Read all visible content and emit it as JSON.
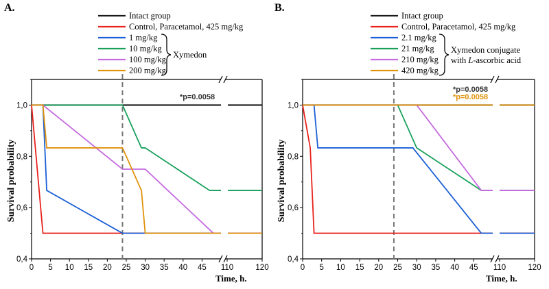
{
  "chart_data": [
    {
      "panel": "A.",
      "type": "line",
      "ylabel": "Survival probability",
      "xlabel": "Time, h.",
      "ylim": [
        0.4,
        1.1
      ],
      "yticks": [
        "0,4",
        "0,6",
        "0,8",
        "1,0"
      ],
      "xticks_left": [
        "0",
        "5",
        "10",
        "15",
        "20",
        "25",
        "30",
        "35",
        "40",
        "45"
      ],
      "xticks_right": [
        "110",
        "120"
      ],
      "axis_break": true,
      "vline_x": 24,
      "grid": false,
      "legend_group_label": "Xymedon",
      "pvalue_label": "*p=0.0058",
      "series": [
        {
          "name": "Intact group",
          "color": "#1a1a1a",
          "points": [
            [
              0,
              1
            ],
            [
              50,
              1
            ],
            [
              120,
              1
            ]
          ]
        },
        {
          "name": "Control, Paracetamol, 425 mg/kg",
          "color": "#e8221c",
          "points": [
            [
              0,
              1
            ],
            [
              3,
              0.5
            ],
            [
              50,
              0.5
            ],
            [
              120,
              0.5
            ]
          ]
        },
        {
          "name": "1 mg/kg",
          "color": "#1b5fd6",
          "points": [
            [
              0,
              1
            ],
            [
              3,
              1
            ],
            [
              4,
              0.667
            ],
            [
              24,
              0.5
            ],
            [
              50,
              0.5
            ],
            [
              120,
              0.5
            ]
          ]
        },
        {
          "name": "10 mg/kg",
          "color": "#17a05a",
          "points": [
            [
              0,
              1
            ],
            [
              24,
              1
            ],
            [
              29,
              0.833
            ],
            [
              30,
              0.833
            ],
            [
              47,
              0.667
            ],
            [
              50,
              0.667
            ],
            [
              120,
              0.667
            ]
          ]
        },
        {
          "name": "100 mg/kg",
          "color": "#c56ae0",
          "points": [
            [
              0,
              1
            ],
            [
              3,
              1
            ],
            [
              24,
              0.75
            ],
            [
              30,
              0.75
            ],
            [
              48,
              0.5
            ],
            [
              50,
              0.5
            ],
            [
              120,
              0.5
            ]
          ]
        },
        {
          "name": "200 mg/kg",
          "color": "#e0920a",
          "points": [
            [
              0,
              1
            ],
            [
              3,
              1
            ],
            [
              4,
              0.833
            ],
            [
              24,
              0.833
            ],
            [
              29,
              0.667
            ],
            [
              30,
              0.5
            ],
            [
              50,
              0.5
            ],
            [
              120,
              0.5
            ]
          ]
        }
      ]
    },
    {
      "panel": "B.",
      "type": "line",
      "ylabel": "Survival probability",
      "xlabel": "Time, h.",
      "ylim": [
        0.4,
        1.1
      ],
      "yticks": [
        "0,4",
        "0,6",
        "0,8",
        "1,0"
      ],
      "xticks_left": [
        "0",
        "5",
        "10",
        "15",
        "20",
        "25",
        "30",
        "35",
        "40",
        "45"
      ],
      "xticks_right": [
        "110",
        "120"
      ],
      "axis_break": true,
      "vline_x": 24,
      "grid": false,
      "legend_group_label_line1": "Xymedon conjugate",
      "legend_group_label_line2_pre": "with ",
      "legend_group_label_line2_italic": "L",
      "legend_group_label_line2_post": "-ascorbic acid",
      "pvalue_label_1": "*p=0.0058",
      "pvalue_label_2": "*p=0.0058",
      "series": [
        {
          "name": "Intact group",
          "color": "#1a1a1a",
          "points": [
            [
              0,
              1
            ],
            [
              50,
              1
            ],
            [
              120,
              1
            ]
          ]
        },
        {
          "name": "Control, Paracetamol, 425 mg/kg",
          "color": "#e8221c",
          "points": [
            [
              0,
              1
            ],
            [
              2,
              0.833
            ],
            [
              3,
              0.5
            ],
            [
              50,
              0.5
            ],
            [
              120,
              0.5
            ]
          ]
        },
        {
          "name": "2.1 mg/kg",
          "color": "#1b5fd6",
          "points": [
            [
              0,
              1
            ],
            [
              3,
              1
            ],
            [
              4,
              0.833
            ],
            [
              29,
              0.833
            ],
            [
              47,
              0.5
            ],
            [
              50,
              0.5
            ],
            [
              120,
              0.5
            ]
          ]
        },
        {
          "name": "21  mg/kg",
          "color": "#17a05a",
          "points": [
            [
              0,
              1
            ],
            [
              25,
              1
            ],
            [
              30,
              0.833
            ],
            [
              47,
              0.667
            ],
            [
              50,
              0.667
            ],
            [
              120,
              0.667
            ]
          ]
        },
        {
          "name": "210 mg/kg",
          "color": "#c56ae0",
          "points": [
            [
              0,
              1
            ],
            [
              30,
              1
            ],
            [
              47,
              0.667
            ],
            [
              50,
              0.667
            ],
            [
              120,
              0.667
            ]
          ]
        },
        {
          "name": "420 mg/kg",
          "color": "#e0920a",
          "points": [
            [
              0,
              1
            ],
            [
              50,
              1
            ],
            [
              120,
              1
            ]
          ]
        }
      ]
    }
  ]
}
